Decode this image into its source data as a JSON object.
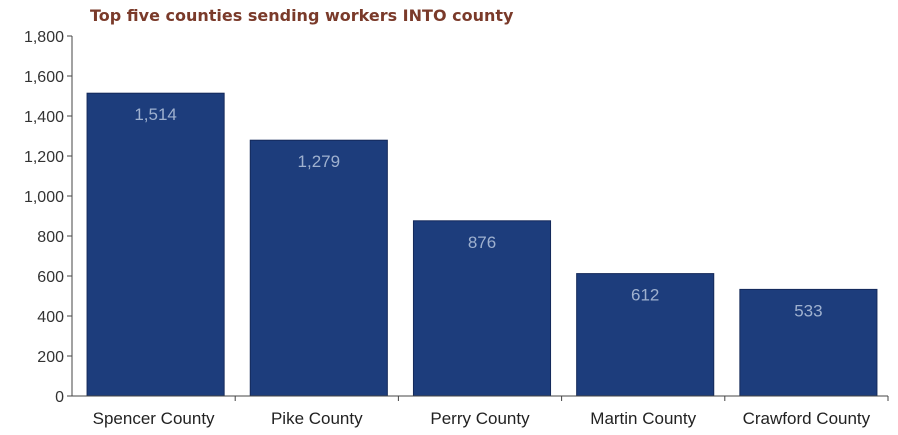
{
  "chart_data": {
    "type": "bar",
    "title": "Top five counties sending workers INTO county",
    "categories": [
      "Spencer County",
      "Pike County",
      "Perry County",
      "Martin County",
      "Crawford County"
    ],
    "values": [
      1514,
      1279,
      876,
      612,
      533
    ],
    "data_labels": [
      "1,514",
      "1,279",
      "876",
      "612",
      "533"
    ],
    "yticks": [
      "0",
      "200",
      "400",
      "600",
      "800",
      "1,000",
      "1,200",
      "1,400",
      "1,600",
      "1,800"
    ],
    "ylim": [
      0,
      1800
    ],
    "xlabel": "",
    "ylabel": "",
    "grid": false,
    "bar_color": "#1d3d7c",
    "label_color": "#9fb1cf",
    "title_color": "#7a3a2a"
  }
}
